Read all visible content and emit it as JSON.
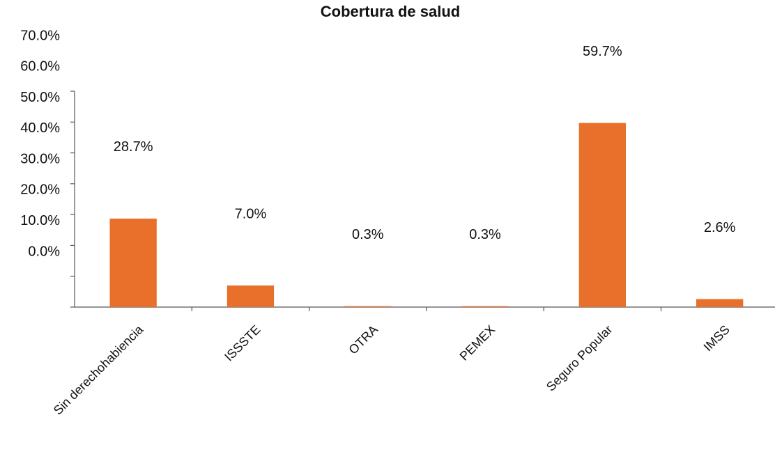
{
  "chart_data": {
    "type": "bar",
    "title": "Cobertura de salud",
    "categories": [
      "Sin derechohabiencia",
      "ISSSTE",
      "OTRA",
      "PEMEX",
      "Seguro Popular",
      "IMSS"
    ],
    "values": [
      28.7,
      7.0,
      0.3,
      0.3,
      59.7,
      2.6
    ],
    "value_labels": [
      "28.7%",
      "7.0%",
      "0.3%",
      "0.3%",
      "59.7%",
      "2.6%"
    ],
    "color": "#e8702a",
    "ylim": [
      0,
      70
    ],
    "yticks": [
      {
        "value": 0,
        "label": "0.0%"
      },
      {
        "value": 10,
        "label": "10.0%"
      },
      {
        "value": 20,
        "label": "20.0%"
      },
      {
        "value": 30,
        "label": "30.0%"
      },
      {
        "value": 40,
        "label": "40.0%"
      },
      {
        "value": 50,
        "label": "50.0%"
      },
      {
        "value": 60,
        "label": "60.0%"
      },
      {
        "value": 70,
        "label": "70.0%"
      }
    ],
    "grid": false
  }
}
